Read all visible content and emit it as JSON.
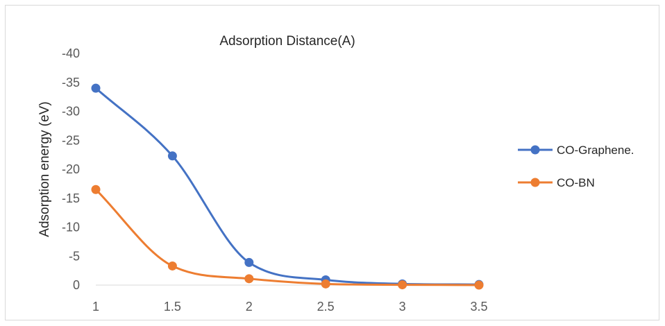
{
  "chart_data": {
    "type": "line",
    "title": "Adsorption Distance(A)",
    "xlabel": "",
    "ylabel": "Adsorption energy (eV)",
    "x": [
      1,
      1.5,
      2,
      2.5,
      3,
      3.5
    ],
    "x_tick_labels": [
      "1",
      "1.5",
      "2",
      "2.5",
      "3",
      "3.5"
    ],
    "y_tick_labels": [
      "0",
      "-5",
      "-10",
      "-15",
      "-20",
      "-25",
      "-30",
      "-35",
      "-40"
    ],
    "ylim": [
      0,
      -40
    ],
    "y_axis_reversed": true,
    "smooth": true,
    "grid": false,
    "legend_position": "right",
    "series": [
      {
        "name": "CO-Graphene.",
        "color": "#4472C4",
        "values": [
          -34.0,
          -22.3,
          -3.9,
          -0.9,
          -0.2,
          -0.1
        ]
      },
      {
        "name": "CO-BN",
        "color": "#ED7D31",
        "values": [
          -16.5,
          -3.3,
          -1.1,
          -0.2,
          -0.05,
          0.0
        ]
      }
    ]
  }
}
